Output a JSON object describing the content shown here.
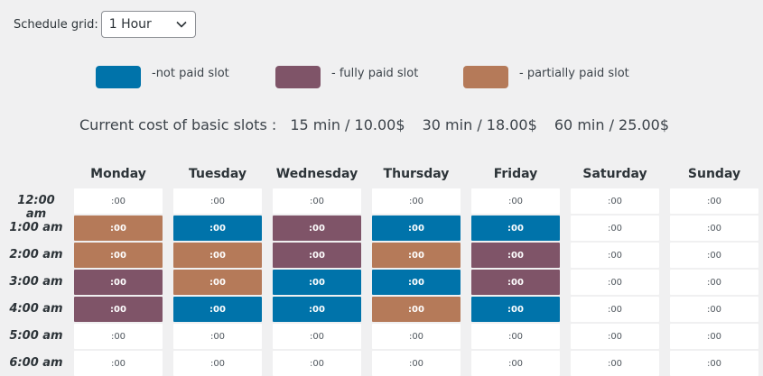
{
  "schedule_grid": {
    "label": "Schedule grid:",
    "value": "1 Hour"
  },
  "legend": [
    {
      "label": "-not paid slot",
      "color": "#0073aa"
    },
    {
      "label": "- fully paid slot",
      "color": "#7f5468"
    },
    {
      "label": "- partially paid slot",
      "color": "#b57a59"
    }
  ],
  "cost": {
    "label": "Current cost of basic slots :",
    "items": [
      "15 min / 10.00$",
      "30 min / 18.00$",
      "60 min / 25.00$"
    ]
  },
  "days": [
    "Monday",
    "Tuesday",
    "Wednesday",
    "Thursday",
    "Friday",
    "Saturday",
    "Sunday"
  ],
  "times": [
    "12:00 am",
    "1:00 am",
    "2:00 am",
    "3:00 am",
    "4:00 am",
    "5:00 am",
    "6:00 am"
  ],
  "slot_text": ":00",
  "grid": [
    [
      "empty",
      "empty",
      "empty",
      "empty",
      "empty",
      "empty",
      "empty"
    ],
    [
      "orange",
      "blue",
      "purple",
      "blue",
      "blue",
      "empty",
      "empty"
    ],
    [
      "orange",
      "orange",
      "purple",
      "orange",
      "purple",
      "empty",
      "empty"
    ],
    [
      "purple",
      "orange",
      "blue",
      "blue",
      "purple",
      "empty",
      "empty"
    ],
    [
      "purple",
      "blue",
      "blue",
      "orange",
      "blue",
      "empty",
      "empty"
    ],
    [
      "empty",
      "empty",
      "empty",
      "empty",
      "empty",
      "empty",
      "empty"
    ],
    [
      "empty",
      "empty",
      "empty",
      "empty",
      "empty",
      "empty",
      "empty"
    ]
  ]
}
